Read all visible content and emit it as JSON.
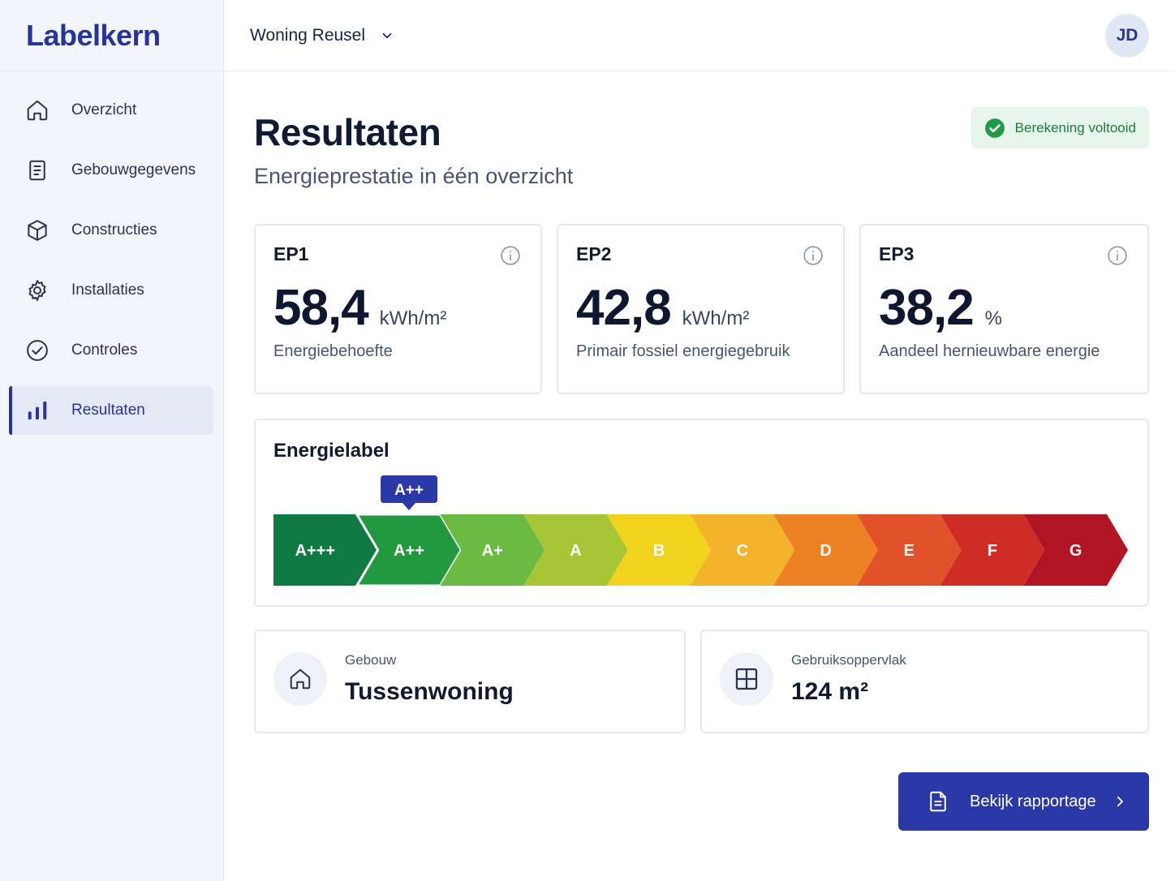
{
  "app": {
    "logo": "Labelkern"
  },
  "header": {
    "project": "Woning Reusel",
    "avatar_initials": "JD"
  },
  "sidebar": {
    "items": [
      {
        "label": "Overzicht",
        "icon": "home-icon",
        "active": false
      },
      {
        "label": "Gebouwgegevens",
        "icon": "document-icon",
        "active": false
      },
      {
        "label": "Constructies",
        "icon": "cube-icon",
        "active": false
      },
      {
        "label": "Installaties",
        "icon": "gear-icon",
        "active": false
      },
      {
        "label": "Controles",
        "icon": "check-circle-icon",
        "active": false
      },
      {
        "label": "Resultaten",
        "icon": "bar-chart-icon",
        "active": true
      }
    ]
  },
  "page": {
    "title": "Resultaten",
    "subtitle": "Energieprestatie in één overzicht",
    "status": "Berekening voltooid"
  },
  "ep": [
    {
      "label": "EP1",
      "value": "58,4",
      "unit": "kWh/m²",
      "description": "Energiebehoefte"
    },
    {
      "label": "EP2",
      "value": "42,8",
      "unit": "kWh/m²",
      "description": "Primair fossiel energiegebruik"
    },
    {
      "label": "EP3",
      "value": "38,2",
      "unit": "%",
      "description": "Aandeel hernieuwbare energie"
    }
  ],
  "energielabel": {
    "title": "Energielabel",
    "selected": "A++",
    "classes": [
      {
        "label": "A+++",
        "color": "#0f7a43"
      },
      {
        "label": "A++",
        "color": "#23993f"
      },
      {
        "label": "A+",
        "color": "#6bbb43"
      },
      {
        "label": "A",
        "color": "#a7c636"
      },
      {
        "label": "B",
        "color": "#f1d21c"
      },
      {
        "label": "C",
        "color": "#f3b32a"
      },
      {
        "label": "D",
        "color": "#ec8126"
      },
      {
        "label": "E",
        "color": "#e1522a"
      },
      {
        "label": "F",
        "color": "#d02c26"
      },
      {
        "label": "G",
        "color": "#b11524"
      }
    ],
    "marker_color": "#2a38a8"
  },
  "building": {
    "label": "Gebouw",
    "value": "Tussenwoning"
  },
  "area": {
    "label": "Gebruiksoppervlak",
    "value": "124 m²"
  },
  "actions": {
    "report_label": "Bekijk rapportage"
  },
  "colors": {
    "accent": "#27349c",
    "success": "#1f9a45"
  }
}
